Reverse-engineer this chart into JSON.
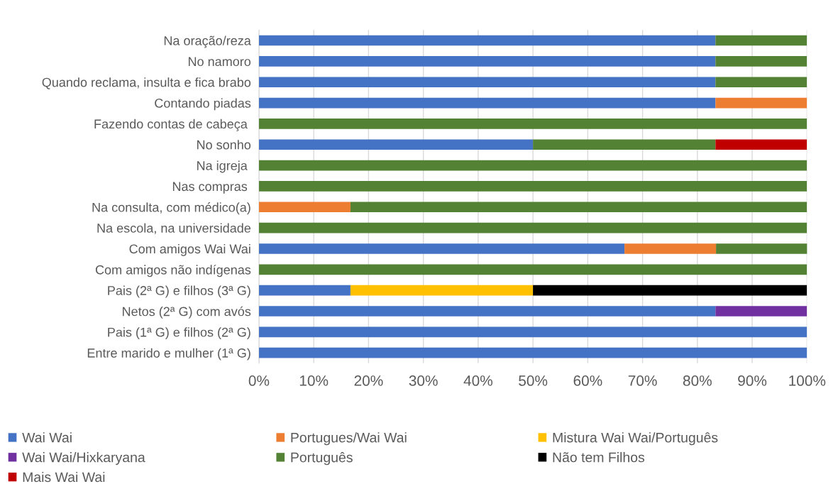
{
  "chart_data": {
    "type": "bar",
    "orientation": "horizontal",
    "stacked": true,
    "categories": [
      "Na oração/reza",
      "No namoro",
      "Quando reclama, insulta e fica brabo",
      "Contando piadas",
      "Fazendo contas de cabeça ",
      "No sonho",
      "Na igreja ",
      "Nas compras ",
      "Na consulta, com médico(a)",
      "Na escola, na universidade",
      "Com amigos Wai Wai",
      "Com amigos não indígenas",
      "Pais (2ª G) e filhos (3ª G)",
      "Netos (2ª G) com avós",
      "Pais (1ª G) e filhos (2ª G)",
      "Entre marido e mulher (1ª G)"
    ],
    "series": [
      {
        "name": "Wai Wai",
        "color": "#4472c4",
        "values": [
          83.3,
          83.3,
          83.3,
          83.3,
          null,
          50,
          null,
          null,
          null,
          null,
          66.7,
          null,
          16.7,
          83.3,
          100,
          100
        ]
      },
      {
        "name": "Portugues/Wai Wai",
        "color": "#ed7d31",
        "values": [
          null,
          null,
          null,
          16.7,
          null,
          null,
          null,
          null,
          16.7,
          null,
          16.7,
          null,
          null,
          null,
          null,
          null
        ]
      },
      {
        "name": "Mistura Wai Wai/Português",
        "color": "#ffc000",
        "values": [
          null,
          null,
          null,
          null,
          null,
          null,
          null,
          null,
          null,
          null,
          null,
          null,
          33.3,
          null,
          null,
          null
        ]
      },
      {
        "name": "Wai Wai/Hixkaryana",
        "color": "#7030a0",
        "values": [
          null,
          null,
          null,
          null,
          null,
          null,
          null,
          null,
          null,
          null,
          null,
          null,
          null,
          16.7,
          null,
          null
        ]
      },
      {
        "name": "Português",
        "color": "#548235",
        "values": [
          16.7,
          16.7,
          16.7,
          null,
          100,
          33.3,
          100,
          100,
          83.3,
          100,
          16.7,
          100,
          null,
          null,
          null,
          null
        ]
      },
      {
        "name": "Não tem Filhos",
        "color": "#000000",
        "values": [
          null,
          null,
          null,
          null,
          null,
          null,
          null,
          null,
          null,
          null,
          null,
          null,
          50,
          null,
          null,
          null
        ]
      },
      {
        "name": "Mais Wai Wai",
        "color": "#c00000",
        "values": [
          null,
          null,
          null,
          null,
          null,
          16.7,
          null,
          null,
          null,
          null,
          null,
          null,
          null,
          null,
          null,
          null
        ]
      }
    ],
    "xlim": [
      0,
      100
    ],
    "xticks": [
      {
        "value": 0,
        "label": "0%"
      },
      {
        "value": 10,
        "label": "10%"
      },
      {
        "value": 20,
        "label": "20%"
      },
      {
        "value": 30,
        "label": "30%"
      },
      {
        "value": 40,
        "label": "40%"
      },
      {
        "value": 50,
        "label": "50%"
      },
      {
        "value": 60,
        "label": "60%"
      },
      {
        "value": 70,
        "label": "70%"
      },
      {
        "value": 80,
        "label": "80%"
      },
      {
        "value": 90,
        "label": "90%"
      },
      {
        "value": 100,
        "label": "100%"
      }
    ],
    "grid": "x",
    "legend": "bottom"
  }
}
